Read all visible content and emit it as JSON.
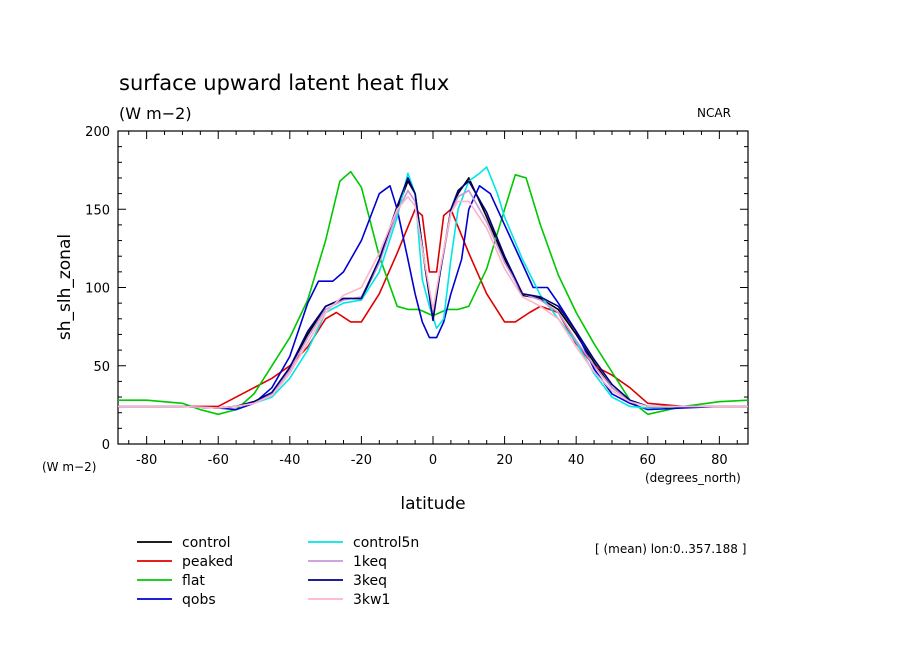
{
  "chart_data": {
    "type": "line",
    "title": "surface upward latent heat flux",
    "subtitle": "(W m−2)",
    "source": "NCAR",
    "xlabel": "latitude",
    "x_units": "(degrees_north)",
    "ylabel": "sh_slh_zonal",
    "y_units": "(W m−2)",
    "note": "[ (mean) lon:0..357.188 ]",
    "xlim": [
      -88,
      88
    ],
    "ylim": [
      0,
      200
    ],
    "xticks": [
      -80,
      -60,
      -40,
      -20,
      0,
      20,
      40,
      60,
      80
    ],
    "yticks": [
      0,
      50,
      100,
      150,
      200
    ],
    "grid": false,
    "legend_position": "bottom-left",
    "series": [
      {
        "name": "control",
        "color": "#000000",
        "x": [
          -88,
          -80,
          -70,
          -60,
          -55,
          -50,
          -45,
          -40,
          -35,
          -30,
          -25,
          -20,
          -15,
          -10,
          -7,
          -5,
          -2,
          0,
          2,
          5,
          7,
          10,
          15,
          20,
          25,
          30,
          35,
          40,
          45,
          50,
          55,
          60,
          70,
          80,
          88
        ],
        "y": [
          24,
          24,
          24,
          23,
          24,
          27,
          32,
          48,
          70,
          88,
          93,
          93,
          116,
          150,
          168,
          160,
          110,
          82,
          110,
          148,
          160,
          170,
          145,
          118,
          95,
          93,
          86,
          70,
          52,
          36,
          28,
          24,
          24,
          24,
          24
        ]
      },
      {
        "name": "peaked",
        "color": "#e00000",
        "x": [
          -88,
          -80,
          -70,
          -60,
          -55,
          -50,
          -45,
          -40,
          -35,
          -30,
          -27,
          -23,
          -20,
          -15,
          -10,
          -5,
          -3,
          -1,
          1,
          3,
          5,
          10,
          15,
          20,
          23,
          27,
          30,
          35,
          40,
          45,
          50,
          55,
          60,
          70,
          80,
          88
        ],
        "y": [
          24,
          24,
          24,
          24,
          30,
          36,
          42,
          50,
          62,
          80,
          84,
          78,
          78,
          96,
          122,
          150,
          146,
          110,
          110,
          146,
          150,
          122,
          96,
          78,
          78,
          84,
          88,
          84,
          64,
          50,
          44,
          36,
          26,
          24,
          24,
          24
        ]
      },
      {
        "name": "flat",
        "color": "#00c800",
        "x": [
          -88,
          -80,
          -70,
          -65,
          -60,
          -55,
          -50,
          -45,
          -40,
          -35,
          -30,
          -26,
          -23,
          -20,
          -15,
          -10,
          -7,
          -4,
          -2,
          0,
          2,
          4,
          7,
          10,
          15,
          20,
          23,
          26,
          30,
          35,
          40,
          45,
          50,
          55,
          60,
          70,
          80,
          88
        ],
        "y": [
          28,
          28,
          26,
          22,
          19,
          22,
          32,
          50,
          68,
          92,
          130,
          168,
          174,
          164,
          120,
          88,
          86,
          86,
          84,
          82,
          84,
          86,
          86,
          88,
          112,
          150,
          172,
          170,
          140,
          108,
          84,
          64,
          46,
          28,
          19,
          24,
          27,
          28
        ]
      },
      {
        "name": "qobs",
        "color": "#0000d2",
        "x": [
          -88,
          -80,
          -70,
          -60,
          -55,
          -50,
          -45,
          -40,
          -35,
          -32,
          -28,
          -25,
          -20,
          -15,
          -12,
          -10,
          -7,
          -5,
          -3,
          -1,
          1,
          3,
          5,
          8,
          10,
          13,
          16,
          20,
          25,
          28,
          32,
          35,
          40,
          45,
          50,
          55,
          60,
          70,
          80,
          88
        ],
        "y": [
          24,
          24,
          24,
          23,
          22,
          26,
          36,
          56,
          90,
          104,
          104,
          110,
          130,
          160,
          165,
          150,
          118,
          96,
          78,
          68,
          68,
          78,
          96,
          118,
          150,
          165,
          160,
          140,
          115,
          100,
          100,
          90,
          72,
          48,
          32,
          26,
          22,
          23,
          24,
          24
        ]
      },
      {
        "name": "control5n",
        "color": "#00e6e6",
        "x": [
          -88,
          -80,
          -70,
          -60,
          -55,
          -50,
          -45,
          -40,
          -35,
          -30,
          -25,
          -20,
          -15,
          -10,
          -7,
          -5,
          -3,
          -1,
          1,
          3,
          5,
          7,
          10,
          13,
          15,
          18,
          20,
          25,
          30,
          35,
          40,
          45,
          50,
          55,
          60,
          70,
          80,
          88
        ],
        "y": [
          24,
          24,
          24,
          23,
          24,
          26,
          30,
          42,
          60,
          84,
          90,
          92,
          110,
          145,
          173,
          160,
          105,
          88,
          74,
          80,
          118,
          150,
          168,
          173,
          177,
          160,
          145,
          118,
          95,
          80,
          65,
          45,
          30,
          24,
          23,
          24,
          24,
          24
        ]
      },
      {
        "name": "1keq",
        "color": "#c896dc",
        "x": [
          -88,
          -80,
          -70,
          -60,
          -55,
          -50,
          -45,
          -40,
          -35,
          -30,
          -25,
          -20,
          -15,
          -10,
          -7,
          -5,
          -2,
          0,
          2,
          5,
          7,
          10,
          15,
          20,
          25,
          30,
          35,
          40,
          45,
          50,
          55,
          60,
          70,
          80,
          88
        ],
        "y": [
          24,
          24,
          24,
          23,
          24,
          26,
          32,
          47,
          68,
          86,
          92,
          94,
          116,
          148,
          162,
          155,
          110,
          84,
          110,
          148,
          158,
          162,
          142,
          116,
          96,
          92,
          84,
          66,
          50,
          36,
          28,
          24,
          24,
          24,
          24
        ]
      },
      {
        "name": "3keq",
        "color": "#000080",
        "x": [
          -88,
          -80,
          -70,
          -60,
          -55,
          -50,
          -45,
          -40,
          -35,
          -30,
          -25,
          -20,
          -15,
          -10,
          -7,
          -5,
          -2,
          0,
          2,
          5,
          7,
          10,
          15,
          20,
          25,
          30,
          35,
          40,
          45,
          50,
          55,
          60,
          70,
          80,
          88
        ],
        "y": [
          24,
          24,
          24,
          23,
          24,
          27,
          33,
          49,
          72,
          88,
          93,
          93,
          118,
          152,
          170,
          160,
          110,
          79,
          110,
          150,
          162,
          168,
          148,
          120,
          96,
          94,
          88,
          72,
          54,
          38,
          28,
          24,
          24,
          24,
          24
        ]
      },
      {
        "name": "3kw1",
        "color": "#ffb4c8",
        "x": [
          -88,
          -80,
          -70,
          -60,
          -55,
          -50,
          -45,
          -40,
          -35,
          -30,
          -25,
          -20,
          -15,
          -10,
          -7,
          -5,
          -2,
          0,
          2,
          5,
          7,
          10,
          15,
          20,
          25,
          30,
          35,
          40,
          45,
          50,
          55,
          60,
          70,
          80,
          88
        ],
        "y": [
          24,
          24,
          24,
          23,
          24,
          26,
          31,
          45,
          65,
          84,
          95,
          100,
          122,
          150,
          158,
          152,
          112,
          86,
          112,
          148,
          155,
          155,
          138,
          112,
          94,
          88,
          80,
          62,
          46,
          34,
          27,
          24,
          24,
          24,
          24
        ]
      }
    ]
  }
}
